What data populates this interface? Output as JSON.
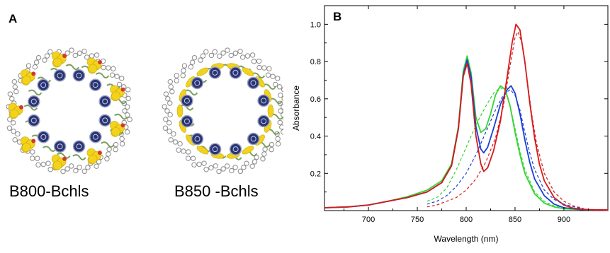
{
  "panel_a": {
    "label": "A",
    "rings": [
      {
        "caption": "B800-Bchls",
        "highlight": "#f2d21b"
      },
      {
        "caption": "B850 -Bchls",
        "highlight": "#f2d21b"
      }
    ],
    "colors": {
      "ring_atoms": "#8a8a8a",
      "chlorophyll": "#2a3576",
      "highlight": "#f2d21b",
      "oxygen": "#d23b2a",
      "helix": "#5a8a3a"
    }
  },
  "panel_b": {
    "label": "B"
  },
  "chart_data": {
    "type": "line",
    "title": "",
    "xlabel": "Wavelength (nm)",
    "ylabel": "Absorbance",
    "xlim": [
      655,
      945
    ],
    "ylim": [
      0,
      1.1
    ],
    "xticks": [
      700,
      750,
      800,
      850,
      900
    ],
    "yticks": [
      0.2,
      0.4,
      0.6,
      0.8,
      1.0
    ],
    "xtick_labels": [
      "700",
      "750",
      "800",
      "850",
      "900"
    ],
    "ytick_labels": [
      "0.2",
      "0.4",
      "0.6",
      "0.8",
      "1.0"
    ],
    "grid": false,
    "legend": "none",
    "series": [
      {
        "color": "#33d633",
        "style": "solid",
        "points": [
          [
            655,
            0.015
          ],
          [
            680,
            0.02
          ],
          [
            700,
            0.03
          ],
          [
            720,
            0.05
          ],
          [
            740,
            0.075
          ],
          [
            760,
            0.11
          ],
          [
            775,
            0.16
          ],
          [
            785,
            0.25
          ],
          [
            792,
            0.45
          ],
          [
            797,
            0.75
          ],
          [
            801,
            0.83
          ],
          [
            805,
            0.74
          ],
          [
            810,
            0.5
          ],
          [
            815,
            0.42
          ],
          [
            820,
            0.44
          ],
          [
            825,
            0.52
          ],
          [
            830,
            0.62
          ],
          [
            835,
            0.67
          ],
          [
            840,
            0.65
          ],
          [
            845,
            0.56
          ],
          [
            850,
            0.42
          ],
          [
            855,
            0.3
          ],
          [
            860,
            0.2
          ],
          [
            870,
            0.09
          ],
          [
            880,
            0.04
          ],
          [
            890,
            0.02
          ],
          [
            900,
            0.01
          ],
          [
            920,
            0.005
          ],
          [
            945,
            0.003
          ]
        ]
      },
      {
        "color": "#1a3fd6",
        "style": "solid",
        "points": [
          [
            655,
            0.015
          ],
          [
            680,
            0.02
          ],
          [
            700,
            0.03
          ],
          [
            720,
            0.05
          ],
          [
            740,
            0.07
          ],
          [
            760,
            0.1
          ],
          [
            775,
            0.15
          ],
          [
            785,
            0.24
          ],
          [
            792,
            0.44
          ],
          [
            797,
            0.73
          ],
          [
            801,
            0.81
          ],
          [
            805,
            0.72
          ],
          [
            810,
            0.45
          ],
          [
            815,
            0.33
          ],
          [
            818,
            0.31
          ],
          [
            822,
            0.34
          ],
          [
            828,
            0.44
          ],
          [
            835,
            0.57
          ],
          [
            842,
            0.65
          ],
          [
            846,
            0.67
          ],
          [
            850,
            0.63
          ],
          [
            855,
            0.52
          ],
          [
            860,
            0.38
          ],
          [
            865,
            0.26
          ],
          [
            870,
            0.17
          ],
          [
            880,
            0.08
          ],
          [
            890,
            0.035
          ],
          [
            900,
            0.015
          ],
          [
            920,
            0.005
          ],
          [
            945,
            0.003
          ]
        ]
      },
      {
        "color": "#d61a1a",
        "style": "solid",
        "points": [
          [
            655,
            0.015
          ],
          [
            680,
            0.02
          ],
          [
            700,
            0.03
          ],
          [
            720,
            0.05
          ],
          [
            740,
            0.07
          ],
          [
            760,
            0.1
          ],
          [
            775,
            0.15
          ],
          [
            785,
            0.24
          ],
          [
            792,
            0.44
          ],
          [
            797,
            0.72
          ],
          [
            801,
            0.79
          ],
          [
            805,
            0.68
          ],
          [
            810,
            0.4
          ],
          [
            815,
            0.25
          ],
          [
            818,
            0.21
          ],
          [
            822,
            0.23
          ],
          [
            828,
            0.32
          ],
          [
            835,
            0.48
          ],
          [
            842,
            0.72
          ],
          [
            847,
            0.9
          ],
          [
            851,
            1.0
          ],
          [
            855,
            0.97
          ],
          [
            860,
            0.8
          ],
          [
            865,
            0.58
          ],
          [
            870,
            0.39
          ],
          [
            875,
            0.25
          ],
          [
            880,
            0.16
          ],
          [
            890,
            0.07
          ],
          [
            900,
            0.03
          ],
          [
            910,
            0.012
          ],
          [
            925,
            0.005
          ],
          [
            945,
            0.003
          ]
        ]
      },
      {
        "color": "#33d633",
        "style": "dashed",
        "points": [
          [
            760,
            0.05
          ],
          [
            770,
            0.07
          ],
          [
            780,
            0.12
          ],
          [
            790,
            0.22
          ],
          [
            800,
            0.34
          ],
          [
            810,
            0.46
          ],
          [
            820,
            0.56
          ],
          [
            828,
            0.63
          ],
          [
            835,
            0.66
          ],
          [
            840,
            0.64
          ],
          [
            845,
            0.56
          ],
          [
            850,
            0.44
          ],
          [
            855,
            0.32
          ],
          [
            860,
            0.22
          ],
          [
            870,
            0.1
          ],
          [
            880,
            0.05
          ],
          [
            890,
            0.025
          ],
          [
            900,
            0.012
          ],
          [
            910,
            0.006
          ]
        ]
      },
      {
        "color": "#1a3fd6",
        "style": "dashed",
        "points": [
          [
            760,
            0.035
          ],
          [
            770,
            0.05
          ],
          [
            780,
            0.08
          ],
          [
            790,
            0.13
          ],
          [
            800,
            0.2
          ],
          [
            810,
            0.3
          ],
          [
            820,
            0.42
          ],
          [
            830,
            0.54
          ],
          [
            838,
            0.62
          ],
          [
            845,
            0.65
          ],
          [
            850,
            0.62
          ],
          [
            855,
            0.54
          ],
          [
            860,
            0.42
          ],
          [
            865,
            0.31
          ],
          [
            870,
            0.22
          ],
          [
            880,
            0.11
          ],
          [
            890,
            0.06
          ],
          [
            900,
            0.035
          ],
          [
            910,
            0.02
          ],
          [
            920,
            0.01
          ]
        ]
      },
      {
        "color": "#d61a1a",
        "style": "dashed",
        "points": [
          [
            760,
            0.02
          ],
          [
            770,
            0.03
          ],
          [
            780,
            0.05
          ],
          [
            790,
            0.07
          ],
          [
            800,
            0.11
          ],
          [
            810,
            0.17
          ],
          [
            820,
            0.26
          ],
          [
            830,
            0.39
          ],
          [
            838,
            0.56
          ],
          [
            845,
            0.78
          ],
          [
            850,
            0.93
          ],
          [
            853,
            0.96
          ],
          [
            857,
            0.9
          ],
          [
            862,
            0.72
          ],
          [
            867,
            0.52
          ],
          [
            872,
            0.36
          ],
          [
            880,
            0.2
          ],
          [
            890,
            0.1
          ],
          [
            900,
            0.05
          ],
          [
            910,
            0.025
          ],
          [
            920,
            0.012
          ]
        ]
      }
    ]
  }
}
